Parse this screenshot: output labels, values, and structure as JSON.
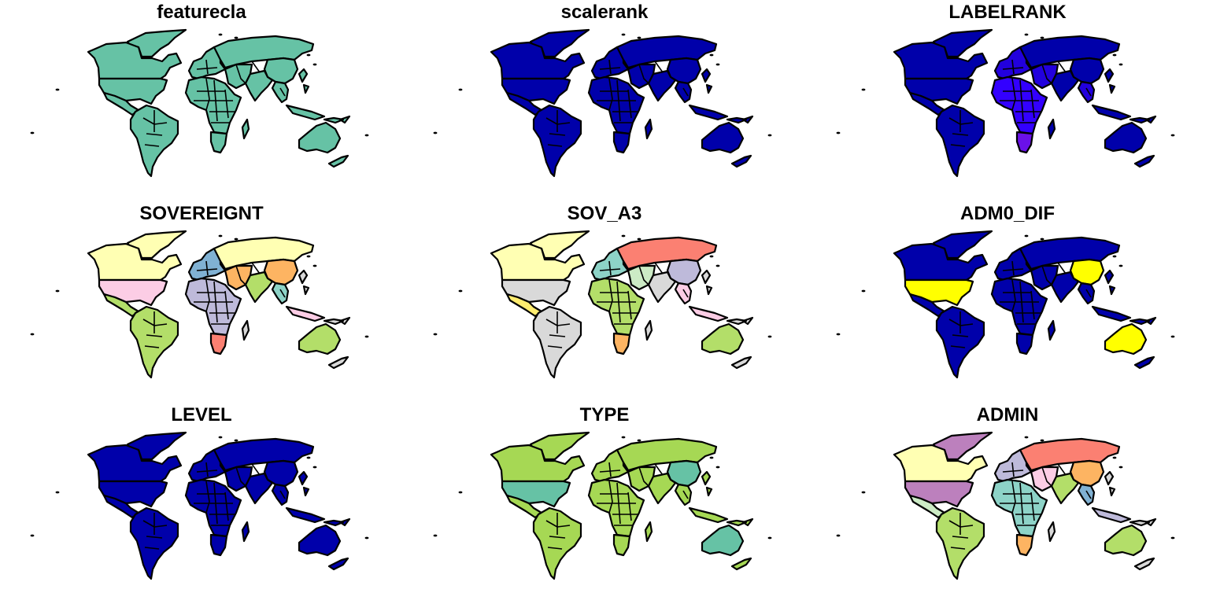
{
  "figure": {
    "panels": [
      {
        "title": "featurecla",
        "fills": {
          "north_america": "#66c2a5",
          "usa": "#66c2a5",
          "greenland": "#66c2a5",
          "mexico": "#66c2a5",
          "south_america": "#66c2a5",
          "europe": "#66c2a5",
          "russia": "#66c2a5",
          "africa": "#66c2a5",
          "south_africa": "#66c2a5",
          "middle_east": "#66c2a5",
          "india": "#66c2a5",
          "china": "#66c2a5",
          "se_asia": "#66c2a5",
          "indonesia": "#66c2a5",
          "australia": "#66c2a5",
          "islands": "#66c2a5"
        }
      },
      {
        "title": "scalerank",
        "fills": {
          "north_america": "#0000aa",
          "usa": "#0000aa",
          "greenland": "#0000aa",
          "mexico": "#0000aa",
          "south_america": "#0000aa",
          "europe": "#0000aa",
          "russia": "#0000aa",
          "africa": "#0000aa",
          "south_africa": "#0000aa",
          "middle_east": "#0000aa",
          "india": "#0000aa",
          "china": "#0000aa",
          "se_asia": "#0000aa",
          "indonesia": "#0000aa",
          "australia": "#0000aa",
          "islands": "#0000aa"
        }
      },
      {
        "title": "LABELRANK",
        "fills": {
          "north_america": "#0000aa",
          "usa": "#0000aa",
          "greenland": "#0000aa",
          "mexico": "#0000aa",
          "south_america": "#0000aa",
          "europe": "#2200dd",
          "russia": "#0000aa",
          "africa": "#3300ff",
          "south_africa": "#6a11e8",
          "middle_east": "#2200dd",
          "india": "#0000aa",
          "china": "#0000aa",
          "se_asia": "#2200dd",
          "indonesia": "#0000aa",
          "australia": "#0000aa",
          "islands": "#0000aa"
        }
      },
      {
        "title": "SOVEREIGNT",
        "fills": {
          "north_america": "#ffffb3",
          "usa": "#fccde5",
          "greenland": "#ffffb3",
          "mexico": "#b3de69",
          "south_america": "#b3de69",
          "europe": "#80b1d3",
          "russia": "#ffffb3",
          "africa": "#bebada",
          "south_africa": "#fb8072",
          "middle_east": "#fdb462",
          "india": "#b3de69",
          "china": "#fdb462",
          "se_asia": "#8dd3c7",
          "indonesia": "#fccde5",
          "australia": "#b3de69",
          "islands": "#d9d9d9"
        }
      },
      {
        "title": "SOV_A3",
        "fills": {
          "north_america": "#ffffb3",
          "usa": "#d9d9d9",
          "greenland": "#ffffb3",
          "mexico": "#ffed6f",
          "south_america": "#d9d9d9",
          "europe": "#8dd3c7",
          "russia": "#fb8072",
          "africa": "#b3de69",
          "south_africa": "#fdb462",
          "middle_east": "#ccebc5",
          "india": "#d9d9d9",
          "china": "#bebada",
          "se_asia": "#fccde5",
          "indonesia": "#fccde5",
          "australia": "#b3de69",
          "islands": "#d9d9d9"
        }
      },
      {
        "title": "ADM0_DIF",
        "fills": {
          "north_america": "#0000aa",
          "usa": "#ffff00",
          "greenland": "#0000aa",
          "mexico": "#0000aa",
          "south_america": "#0000aa",
          "europe": "#0000aa",
          "russia": "#0000aa",
          "africa": "#0000aa",
          "south_africa": "#0000aa",
          "middle_east": "#0000aa",
          "india": "#0000aa",
          "china": "#ffff00",
          "se_asia": "#0000aa",
          "indonesia": "#0000aa",
          "australia": "#ffff00",
          "islands": "#0000aa"
        }
      },
      {
        "title": "LEVEL",
        "fills": {
          "north_america": "#0000aa",
          "usa": "#0000aa",
          "greenland": "#0000aa",
          "mexico": "#0000aa",
          "south_america": "#0000aa",
          "europe": "#0000aa",
          "russia": "#0000aa",
          "africa": "#0000aa",
          "south_africa": "#0000aa",
          "middle_east": "#0000aa",
          "india": "#0000aa",
          "china": "#0000aa",
          "se_asia": "#0000aa",
          "indonesia": "#0000aa",
          "australia": "#0000aa",
          "islands": "#0000aa"
        }
      },
      {
        "title": "TYPE",
        "fills": {
          "north_america": "#a6d854",
          "usa": "#66c2a5",
          "greenland": "#a6d854",
          "mexico": "#a6d854",
          "south_america": "#a6d854",
          "europe": "#a6d854",
          "russia": "#a6d854",
          "africa": "#a6d854",
          "south_africa": "#a6d854",
          "middle_east": "#a6d854",
          "india": "#a6d854",
          "china": "#66c2a5",
          "se_asia": "#a6d854",
          "indonesia": "#a6d854",
          "australia": "#66c2a5",
          "islands": "#a6d854"
        }
      },
      {
        "title": "ADMIN",
        "fills": {
          "north_america": "#ffffb3",
          "usa": "#bc80bd",
          "greenland": "#bc80bd",
          "mexico": "#ccebc5",
          "south_america": "#b3de69",
          "europe": "#bebada",
          "russia": "#fb8072",
          "africa": "#8dd3c7",
          "south_africa": "#fdb462",
          "middle_east": "#fccde5",
          "india": "#b3de69",
          "china": "#fdb462",
          "se_asia": "#80b1d3",
          "indonesia": "#bebada",
          "australia": "#b3de69",
          "islands": "#d9d9d9"
        }
      }
    ]
  }
}
